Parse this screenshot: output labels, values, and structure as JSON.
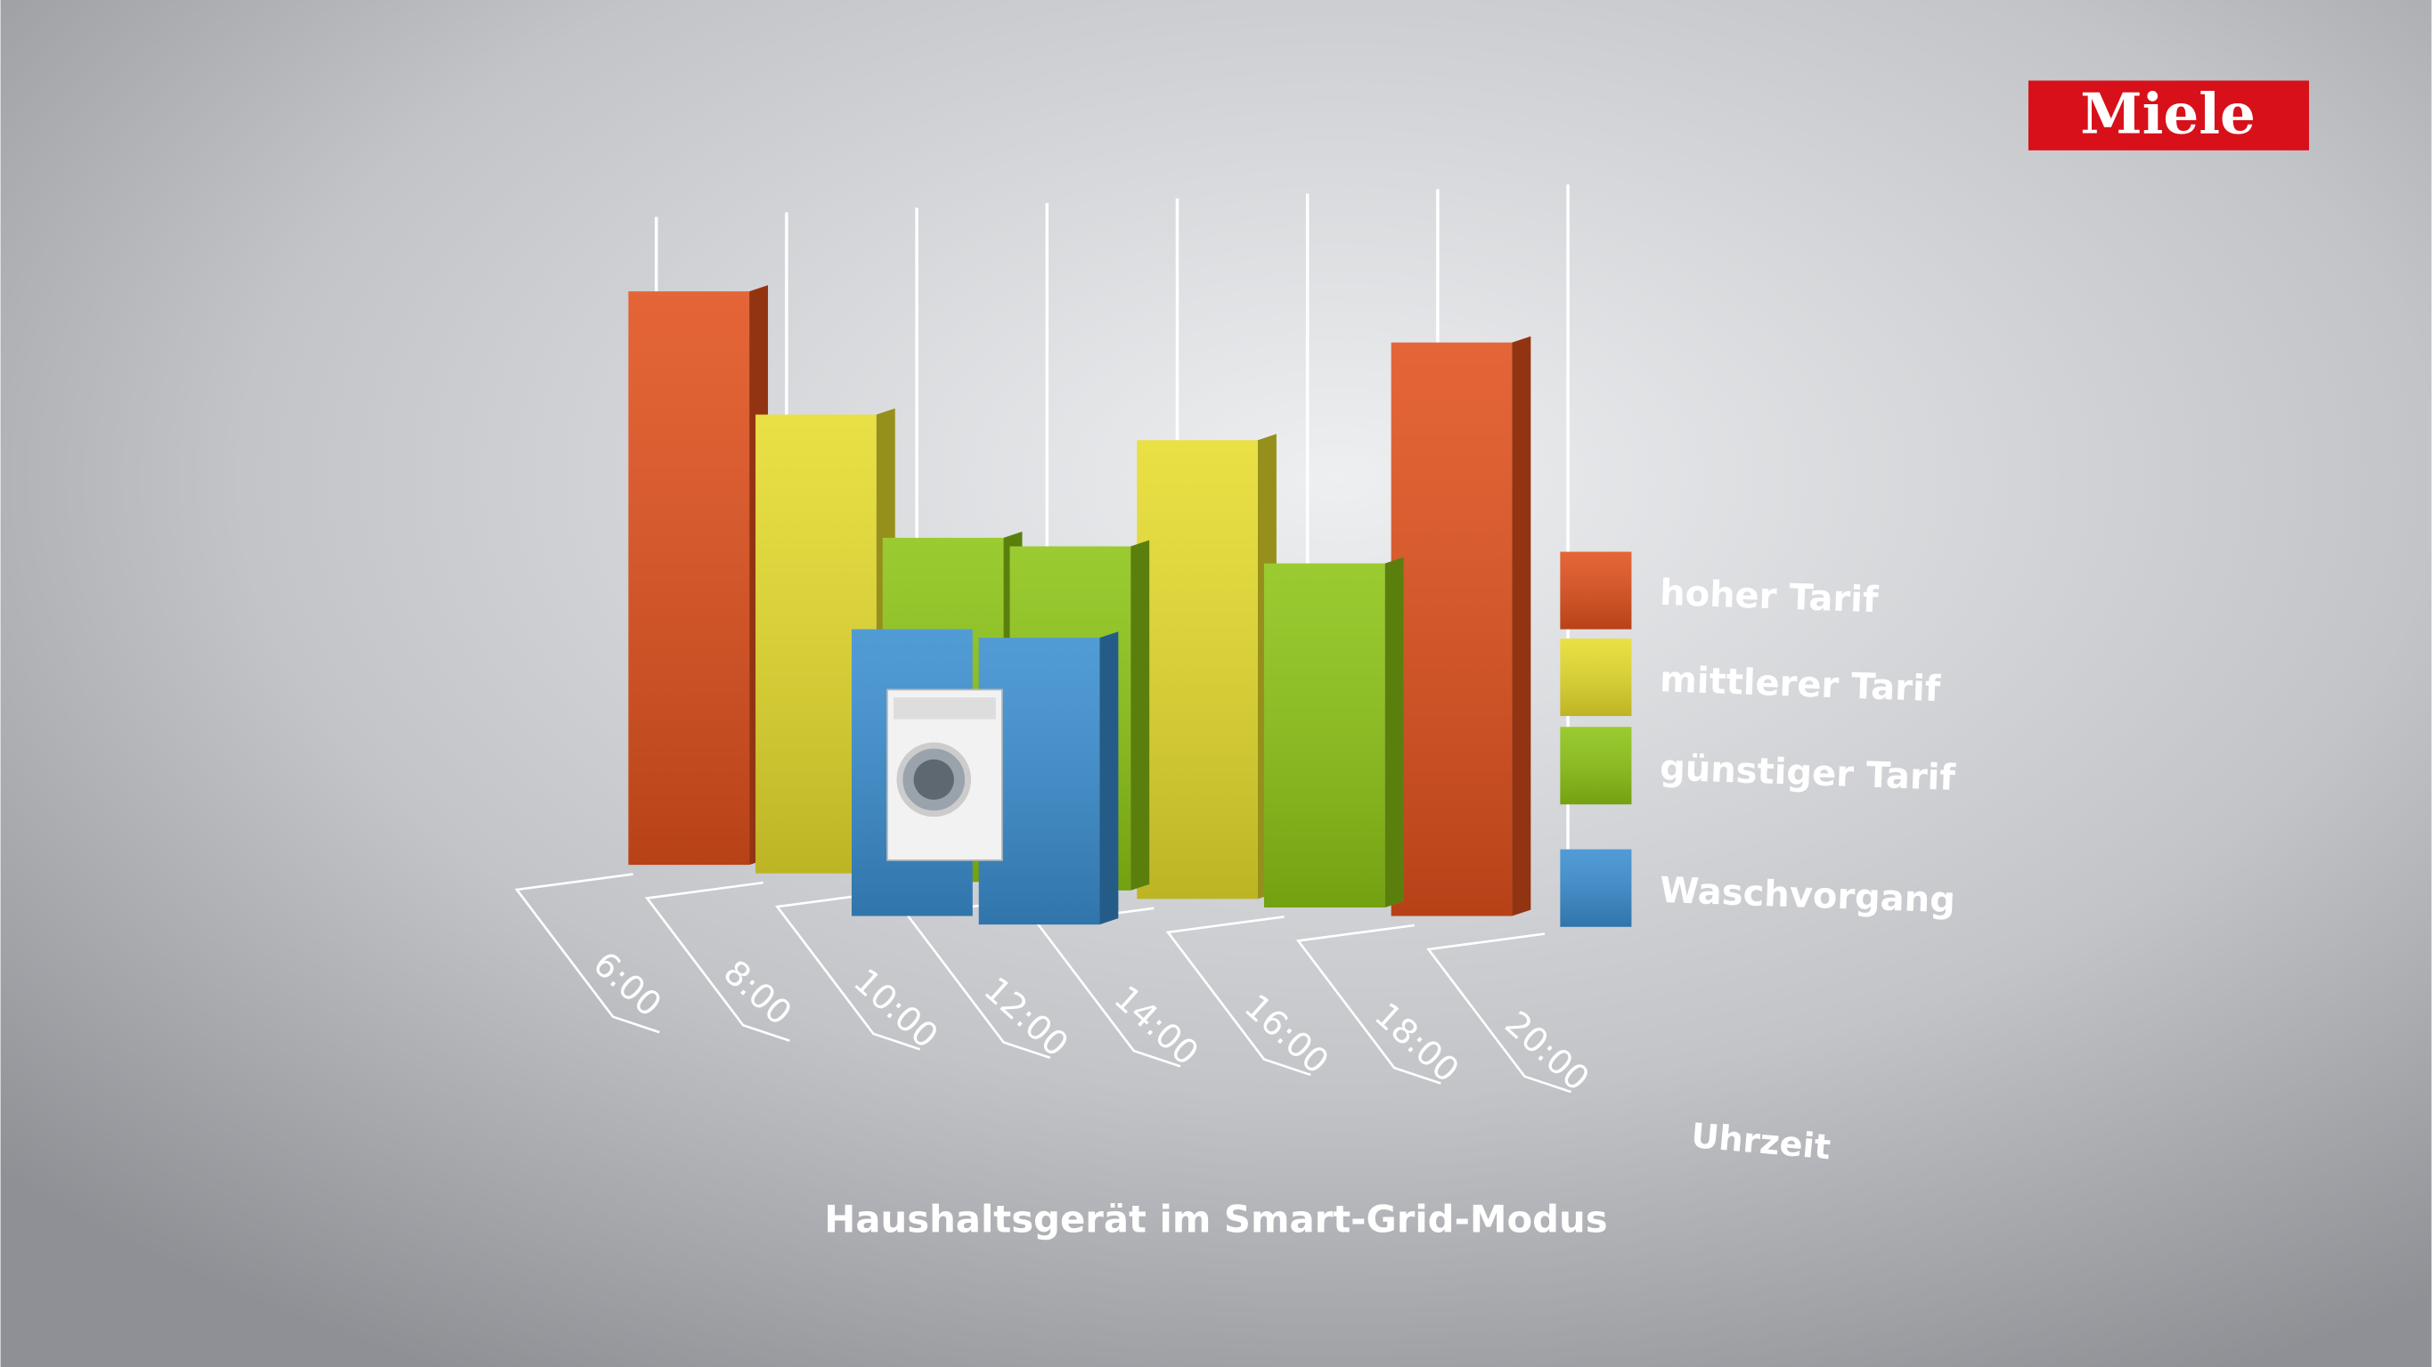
{
  "brand": "Miele",
  "chart_data": {
    "type": "bar",
    "title": "Haushaltsgerät im Smart-Grid-Modus",
    "x_label": "Uhrzeit",
    "categories": [
      "6:00",
      "8:00",
      "10:00",
      "12:00",
      "14:00",
      "16:00",
      "18:00",
      "20:00"
    ],
    "series": [
      {
        "name": "hoher Tarif",
        "color": "#e0501c",
        "values": [
          10,
          null,
          null,
          null,
          null,
          null,
          10,
          null
        ]
      },
      {
        "name": "mittlerer Tarif",
        "color": "#e6dc2c",
        "values": [
          null,
          8,
          null,
          null,
          8,
          null,
          null,
          null
        ]
      },
      {
        "name": "günstiger Tarif",
        "color": "#8cc414",
        "values": [
          null,
          null,
          6,
          6,
          null,
          6,
          null,
          null
        ]
      },
      {
        "name": "Waschvorgang",
        "color": "#3a8ed0",
        "values": [
          null,
          null,
          5,
          5,
          null,
          null,
          null,
          null
        ]
      }
    ]
  }
}
